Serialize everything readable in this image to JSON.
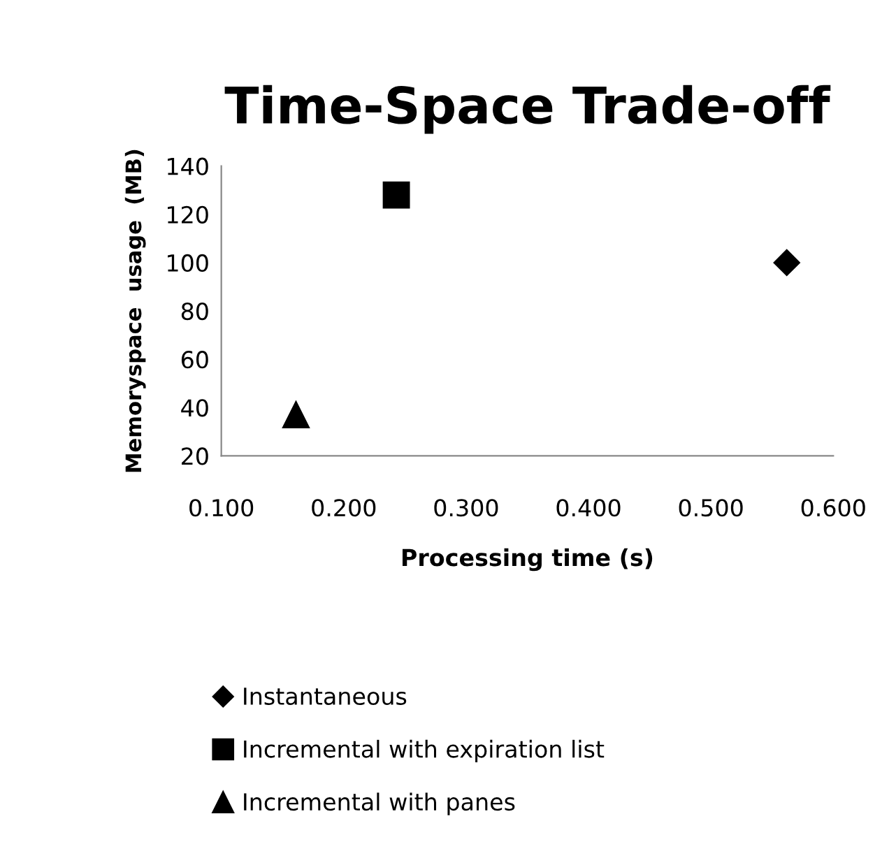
{
  "chart_data": {
    "type": "scatter",
    "title": "Time-Space Trade-off",
    "xlabel": "Processing time (s)",
    "ylabel": "Memoryspace  usage  (MB)",
    "xlim": [
      0.1,
      0.6
    ],
    "xticks": [
      {
        "value": 0.1,
        "label": "0.100"
      },
      {
        "value": 0.2,
        "label": "0.200"
      },
      {
        "value": 0.3,
        "label": "0.300"
      },
      {
        "value": 0.4,
        "label": "0.400"
      },
      {
        "value": 0.5,
        "label": "0.500"
      },
      {
        "value": 0.6,
        "label": "0.600"
      }
    ],
    "ylim": [
      20,
      140
    ],
    "yticks": [
      20,
      40,
      60,
      80,
      100,
      120,
      140
    ],
    "grid": false,
    "legend": "bottom",
    "series": [
      {
        "name": "Instantaneous",
        "color": "#000000",
        "marker": "diamond",
        "x": [
          0.562
        ],
        "values": [
          100
        ]
      },
      {
        "name": "Incremental with expiration list",
        "color": "#000000",
        "marker": "square",
        "x": [
          0.243
        ],
        "values": [
          128
        ]
      },
      {
        "name": "Incremental with panes",
        "color": "#000000",
        "marker": "triangle",
        "x": [
          0.161
        ],
        "values": [
          37
        ]
      }
    ]
  }
}
